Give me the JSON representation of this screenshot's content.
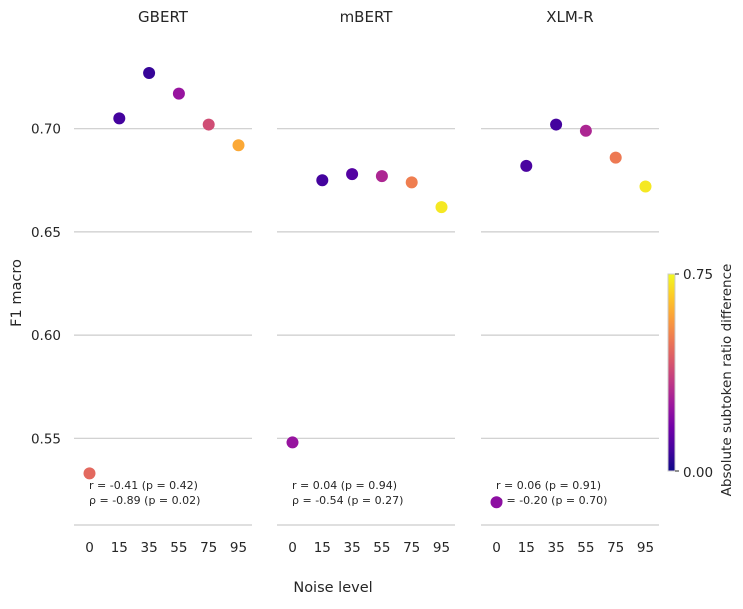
{
  "chart_data": {
    "type": "scatter",
    "x_categories": [
      "0",
      "15",
      "35",
      "55",
      "75",
      "95"
    ],
    "xlabel": "Noise level",
    "ylabel": "F1 macro",
    "ylim": [
      0.508,
      0.742
    ],
    "yticks": [
      "0.55",
      "0.60",
      "0.65",
      "0.70"
    ],
    "ytick_values": [
      0.55,
      0.6,
      0.65,
      0.7
    ],
    "grid": "horizontal",
    "colorbar": {
      "label": "Absolute subtoken ratio difference",
      "min_label": "0.00",
      "max_label": "0.75",
      "colormap": "plasma",
      "colors": [
        "#0d0887",
        "#46039f",
        "#7201a8",
        "#9c179e",
        "#bd3786",
        "#d8576b",
        "#ed7953",
        "#fb9f3a",
        "#fdca26",
        "#f0f921"
      ]
    },
    "panels": [
      {
        "title": "GBERT",
        "annotation_r": "r = -0.41 (p = 0.42)",
        "annotation_rho": "ρ = -0.89 (p = 0.02)",
        "points": [
          {
            "x": "0",
            "y": 0.533,
            "c": 0.46
          },
          {
            "x": "15",
            "y": 0.705,
            "c": 0.08
          },
          {
            "x": "35",
            "y": 0.727,
            "c": 0.06
          },
          {
            "x": "55",
            "y": 0.717,
            "c": 0.24
          },
          {
            "x": "75",
            "y": 0.702,
            "c": 0.39
          },
          {
            "x": "95",
            "y": 0.692,
            "c": 0.6
          }
        ]
      },
      {
        "title": "mBERT",
        "annotation_r": "r = 0.04 (p = 0.94)",
        "annotation_rho": "ρ = -0.54 (p = 0.27)",
        "points": [
          {
            "x": "0",
            "y": 0.548,
            "c": 0.24
          },
          {
            "x": "15",
            "y": 0.675,
            "c": 0.08
          },
          {
            "x": "35",
            "y": 0.678,
            "c": 0.11
          },
          {
            "x": "55",
            "y": 0.677,
            "c": 0.29
          },
          {
            "x": "75",
            "y": 0.674,
            "c": 0.51
          },
          {
            "x": "95",
            "y": 0.662,
            "c": 0.72
          }
        ]
      },
      {
        "title": "XLM-R",
        "annotation_r": "r = 0.06 (p = 0.91)",
        "annotation_rho": "ρ = -0.20 (p = 0.70)",
        "points": [
          {
            "x": "0",
            "y": 0.519,
            "c": 0.22
          },
          {
            "x": "15",
            "y": 0.682,
            "c": 0.09
          },
          {
            "x": "35",
            "y": 0.702,
            "c": 0.08
          },
          {
            "x": "55",
            "y": 0.699,
            "c": 0.29
          },
          {
            "x": "75",
            "y": 0.686,
            "c": 0.5
          },
          {
            "x": "95",
            "y": 0.672,
            "c": 0.72
          }
        ]
      }
    ]
  }
}
